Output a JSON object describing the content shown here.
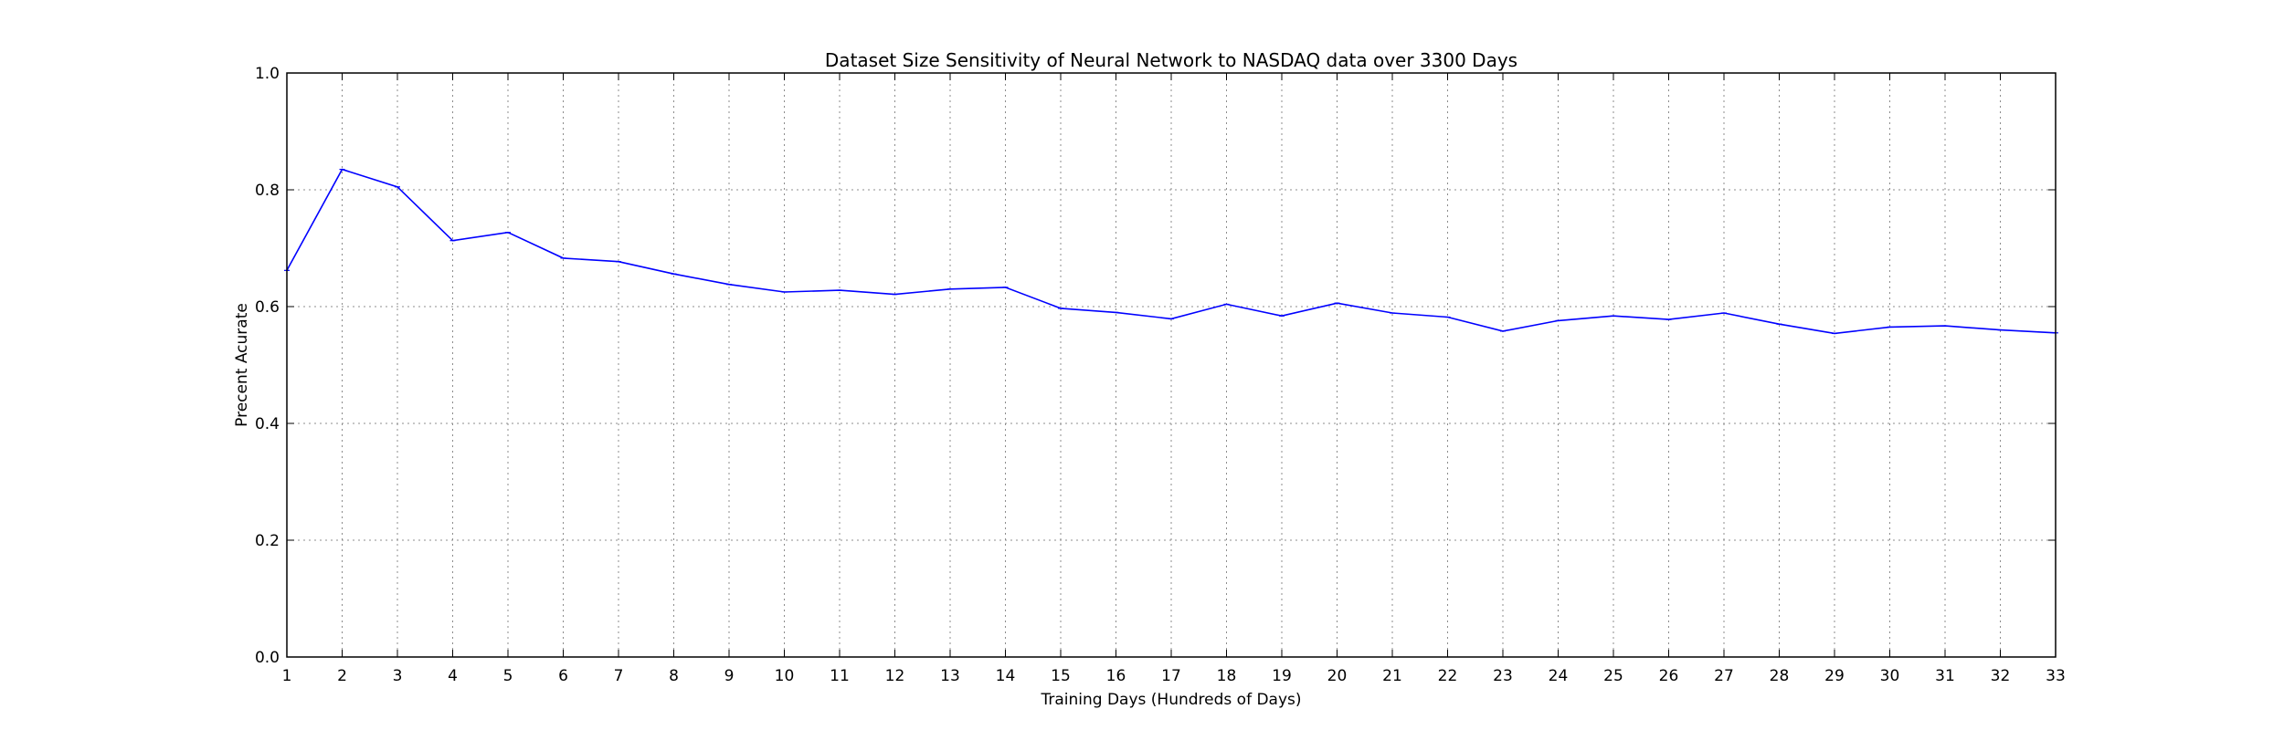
{
  "chart_data": {
    "type": "line",
    "title": "Dataset Size Sensitivity of Neural Network to NASDAQ data over 3300 Days",
    "xlabel": "Training Days (Hundreds of Days)",
    "ylabel": "Precent Acurate",
    "xlim": [
      1,
      33
    ],
    "ylim": [
      0.0,
      1.0
    ],
    "xticks": [
      1,
      2,
      3,
      4,
      5,
      6,
      7,
      8,
      9,
      10,
      11,
      12,
      13,
      14,
      15,
      16,
      17,
      18,
      19,
      20,
      21,
      22,
      23,
      24,
      25,
      26,
      27,
      28,
      29,
      30,
      31,
      32,
      33
    ],
    "yticks": [
      0.0,
      0.2,
      0.4,
      0.6,
      0.8,
      1.0
    ],
    "ytick_labels": [
      "0.0",
      "0.2",
      "0.4",
      "0.6",
      "0.8",
      "1.0"
    ],
    "grid": true,
    "series": [
      {
        "color": "#0000ff",
        "x": [
          1,
          2,
          3,
          4,
          5,
          6,
          7,
          8,
          9,
          10,
          11,
          12,
          13,
          14,
          15,
          16,
          17,
          18,
          19,
          20,
          21,
          22,
          23,
          24,
          25,
          26,
          27,
          28,
          29,
          30,
          31,
          32,
          33
        ],
        "y": [
          0.662,
          0.835,
          0.805,
          0.713,
          0.727,
          0.683,
          0.677,
          0.656,
          0.638,
          0.625,
          0.628,
          0.621,
          0.63,
          0.633,
          0.597,
          0.59,
          0.579,
          0.604,
          0.584,
          0.606,
          0.589,
          0.582,
          0.558,
          0.576,
          0.584,
          0.578,
          0.589,
          0.57,
          0.554,
          0.565,
          0.567,
          0.56,
          0.555
        ]
      }
    ]
  }
}
